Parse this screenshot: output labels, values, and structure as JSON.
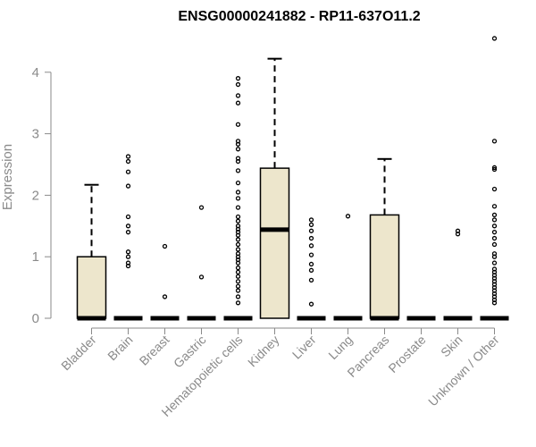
{
  "chart_data": {
    "type": "boxplot",
    "title": "ENSG00000241882 - RP11-637O11.2",
    "ylabel": "Expression",
    "ylim": [
      0,
      4.6
    ],
    "yticks": [
      0,
      1,
      2,
      3,
      4
    ],
    "box_fill": "#ede6cc",
    "categories": [
      "Bladder",
      "Brain",
      "Breast",
      "Gastric",
      "Hematopoietic cells",
      "Kidney",
      "Liver",
      "Lung",
      "Pancreas",
      "Prostate",
      "Skin",
      "Unknown / Other"
    ],
    "boxes": [
      {
        "name": "Bladder",
        "min": 0,
        "q1": 0,
        "median": 0,
        "q3": 1.0,
        "max": 2.17,
        "outliers": []
      },
      {
        "name": "Brain",
        "min": 0,
        "q1": 0,
        "median": 0,
        "q3": 0,
        "max": 0,
        "outliers": [
          0.85,
          0.9,
          1.0,
          1.08,
          1.4,
          1.5,
          1.65,
          2.15,
          2.38,
          2.55,
          2.63
        ]
      },
      {
        "name": "Breast",
        "min": 0,
        "q1": 0,
        "median": 0,
        "q3": 0,
        "max": 0,
        "outliers": [
          0.35,
          1.17
        ]
      },
      {
        "name": "Gastric",
        "min": 0,
        "q1": 0,
        "median": 0,
        "q3": 0,
        "max": 0,
        "outliers": [
          0.67,
          1.8
        ]
      },
      {
        "name": "Hematopoietic cells",
        "min": 0,
        "q1": 0,
        "median": 0,
        "q3": 0,
        "max": 0,
        "outliers": [
          0.25,
          0.35,
          0.45,
          0.52,
          0.6,
          0.68,
          0.75,
          0.82,
          0.9,
          0.95,
          1.0,
          1.05,
          1.12,
          1.2,
          1.28,
          1.35,
          1.4,
          1.45,
          1.5,
          1.58,
          1.65,
          1.8,
          1.95,
          2.05,
          2.2,
          2.4,
          2.55,
          2.6,
          2.75,
          2.83,
          2.88,
          3.15,
          3.5,
          3.62,
          3.8,
          3.9
        ]
      },
      {
        "name": "Kidney",
        "min": 0,
        "q1": 0,
        "median": 1.44,
        "q3": 2.44,
        "max": 4.22,
        "outliers": []
      },
      {
        "name": "Liver",
        "min": 0,
        "q1": 0,
        "median": 0,
        "q3": 0,
        "max": 0,
        "outliers": [
          0.23,
          0.62,
          0.78,
          0.88,
          1.03,
          1.18,
          1.3,
          1.42,
          1.52,
          1.6
        ]
      },
      {
        "name": "Lung",
        "min": 0,
        "q1": 0,
        "median": 0,
        "q3": 0,
        "max": 0,
        "outliers": [
          1.66
        ]
      },
      {
        "name": "Pancreas",
        "min": 0,
        "q1": 0,
        "median": 0,
        "q3": 1.68,
        "max": 2.59,
        "outliers": []
      },
      {
        "name": "Prostate",
        "min": 0,
        "q1": 0,
        "median": 0,
        "q3": 0,
        "max": 0,
        "outliers": []
      },
      {
        "name": "Skin",
        "min": 0,
        "q1": 0,
        "median": 0,
        "q3": 0,
        "max": 0,
        "outliers": [
          1.37,
          1.42
        ]
      },
      {
        "name": "Unknown / Other",
        "min": 0,
        "q1": 0,
        "median": 0,
        "q3": 0,
        "max": 0,
        "outliers": [
          0.25,
          0.3,
          0.35,
          0.4,
          0.45,
          0.5,
          0.55,
          0.6,
          0.65,
          0.7,
          0.75,
          0.8,
          0.9,
          1.0,
          1.05,
          1.2,
          1.3,
          1.4,
          1.5,
          1.6,
          1.68,
          1.82,
          2.1,
          2.42,
          2.45,
          2.88,
          4.55
        ]
      }
    ]
  }
}
